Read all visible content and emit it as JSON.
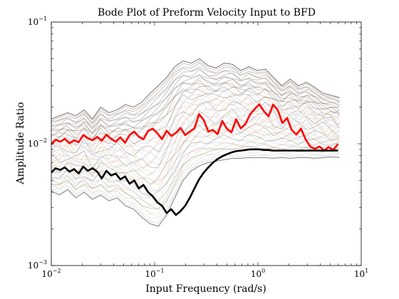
{
  "chart_data": {
    "type": "line",
    "title": "Bode Plot of Preform Velocity Input to BFD",
    "xlabel": "Input Frequency (rad/s)",
    "ylabel": "Amplitude Ratio",
    "xscale": "log",
    "yscale": "log",
    "xlim": [
      0.01,
      10
    ],
    "ylim": [
      0.001,
      0.1
    ],
    "x_ticks": [
      {
        "value": 0.01,
        "base": "10",
        "exp": "−2"
      },
      {
        "value": 0.1,
        "base": "10",
        "exp": "−1"
      },
      {
        "value": 1,
        "base": "10",
        "exp": "0"
      },
      {
        "value": 10,
        "base": "10",
        "exp": "1"
      }
    ],
    "y_ticks": [
      {
        "value": 0.001,
        "base": "10",
        "exp": "−3"
      },
      {
        "value": 0.01,
        "base": "10",
        "exp": "−2"
      },
      {
        "value": 0.1,
        "base": "10",
        "exp": "−1"
      }
    ],
    "grid": false,
    "legend": "none",
    "background_band": {
      "description_color": "#8a7d73",
      "upper_y": [
        0.016,
        0.017,
        0.018,
        0.017,
        0.019,
        0.016,
        0.02,
        0.018,
        0.019,
        0.021,
        0.02,
        0.022,
        0.026,
        0.03,
        0.035,
        0.043,
        0.048,
        0.046,
        0.05,
        0.044,
        0.042,
        0.046,
        0.045,
        0.04,
        0.043,
        0.04,
        0.041,
        0.035,
        0.03,
        0.034,
        0.03,
        0.032,
        0.029,
        0.026,
        0.025,
        0.024,
        0.024,
        0.023
      ],
      "lower_y": [
        0.0041,
        0.0038,
        0.0042,
        0.0036,
        0.004,
        0.0035,
        0.0038,
        0.0034,
        0.0036,
        0.0031,
        0.0029,
        0.0025,
        0.0022,
        0.0021,
        0.0026,
        0.0036,
        0.005,
        0.006,
        0.0066,
        0.007,
        0.0072,
        0.0074,
        0.0076,
        0.0076,
        0.0077,
        0.0077,
        0.0077,
        0.0076,
        0.0077,
        0.0076,
        0.0077,
        0.0077,
        0.0076,
        0.0077,
        0.0078,
        0.0077,
        0.0078,
        0.0078
      ]
    },
    "x": [
      0.01,
      0.012,
      0.0144,
      0.0173,
      0.0208,
      0.025,
      0.03,
      0.0361,
      0.0434,
      0.0521,
      0.0626,
      0.0752,
      0.0904,
      0.1086,
      0.1305,
      0.1568,
      0.1884,
      0.2264,
      0.272,
      0.3268,
      0.3927,
      0.4718,
      0.5669,
      0.6812,
      0.8185,
      0.9834,
      1.182,
      1.42,
      1.706,
      2.05,
      2.463,
      2.959,
      3.556,
      4.272,
      5.133,
      6.168,
      7.411,
      8.905
    ],
    "series": [
      {
        "color": "#ff0000",
        "x": [
          0.01,
          0.011,
          0.0122,
          0.0135,
          0.015,
          0.0166,
          0.0184,
          0.0204,
          0.0226,
          0.0251,
          0.0278,
          0.0308,
          0.0342,
          0.0379,
          0.042,
          0.0466,
          0.0517,
          0.0573,
          0.0635,
          0.0704,
          0.0781,
          0.0866,
          0.096,
          0.1064,
          0.118,
          0.1308,
          0.145,
          0.1608,
          0.1783,
          0.1977,
          0.2192,
          0.243,
          0.2694,
          0.2987,
          0.3312,
          0.3672,
          0.4071,
          0.4514,
          0.5004,
          0.5548,
          0.6152,
          0.682,
          0.7562,
          0.8384,
          0.9295,
          1.0306,
          1.1426,
          1.2669,
          1.4046,
          1.5573,
          1.7266,
          1.9143,
          2.1224,
          2.3531,
          2.6089,
          2.8926,
          3.207,
          3.5557,
          3.9422,
          4.3708,
          4.846,
          5.3728,
          5.957
        ],
        "values": [
          0.0099,
          0.0108,
          0.0104,
          0.011,
          0.0101,
          0.0107,
          0.0103,
          0.0118,
          0.0111,
          0.0107,
          0.0114,
          0.0106,
          0.0119,
          0.011,
          0.0104,
          0.0113,
          0.0102,
          0.0118,
          0.0126,
          0.0114,
          0.0109,
          0.0128,
          0.0133,
          0.0122,
          0.0109,
          0.0128,
          0.0116,
          0.0123,
          0.0135,
          0.0118,
          0.0126,
          0.0134,
          0.0175,
          0.0157,
          0.0126,
          0.013,
          0.012,
          0.0154,
          0.0133,
          0.0124,
          0.0159,
          0.0134,
          0.0145,
          0.0174,
          0.0193,
          0.0211,
          0.0185,
          0.0168,
          0.021,
          0.0189,
          0.0148,
          0.0163,
          0.013,
          0.0119,
          0.0133,
          0.0109,
          0.0095,
          0.0091,
          0.0095,
          0.0088,
          0.0094,
          0.0089,
          0.01
        ]
      },
      {
        "color": "#000000",
        "x": [
          0.01,
          0.011,
          0.0122,
          0.0135,
          0.015,
          0.0166,
          0.0184,
          0.0204,
          0.0226,
          0.0251,
          0.0278,
          0.0308,
          0.0342,
          0.0379,
          0.042,
          0.0466,
          0.0517,
          0.0573,
          0.0635,
          0.0704,
          0.0781,
          0.0866,
          0.096,
          0.1064,
          0.118,
          0.1308,
          0.145,
          0.1608,
          0.1783,
          0.1977,
          0.2192,
          0.243,
          0.2694,
          0.2987,
          0.3312,
          0.3672,
          0.4071,
          0.4514,
          0.5004,
          0.5548,
          0.6152,
          0.682,
          0.7562,
          0.8384,
          0.9295,
          1.0306,
          1.1426,
          1.2669,
          1.4046,
          1.5573,
          1.7266,
          1.9143,
          2.1224,
          2.3531,
          2.6089,
          2.8926,
          3.207,
          3.5557,
          3.9422,
          4.3708,
          4.846,
          5.3728,
          5.957
        ],
        "values": [
          0.0058,
          0.0063,
          0.0061,
          0.0064,
          0.0059,
          0.0062,
          0.0057,
          0.0065,
          0.006,
          0.0063,
          0.0059,
          0.0052,
          0.006,
          0.0055,
          0.0057,
          0.0051,
          0.0054,
          0.0047,
          0.005,
          0.0043,
          0.0046,
          0.004,
          0.0037,
          0.0033,
          0.0031,
          0.0027,
          0.0029,
          0.0026,
          0.0028,
          0.0031,
          0.0036,
          0.0043,
          0.0051,
          0.0058,
          0.0064,
          0.007,
          0.0075,
          0.0079,
          0.0082,
          0.0085,
          0.0087,
          0.0088,
          0.0089,
          0.009,
          0.009,
          0.009,
          0.0089,
          0.0089,
          0.0088,
          0.0088,
          0.0088,
          0.0088,
          0.0088,
          0.0088,
          0.0088,
          0.0088,
          0.0088,
          0.0088,
          0.0088,
          0.0088,
          0.0088,
          0.0088,
          0.0088
        ]
      }
    ]
  }
}
